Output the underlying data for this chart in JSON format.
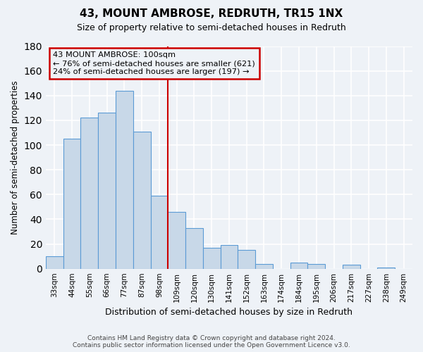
{
  "title": "43, MOUNT AMBROSE, REDRUTH, TR15 1NX",
  "subtitle": "Size of property relative to semi-detached houses in Redruth",
  "xlabel": "Distribution of semi-detached houses by size in Redruth",
  "ylabel": "Number of semi-detached properties",
  "bar_labels": [
    "33sqm",
    "44sqm",
    "55sqm",
    "66sqm",
    "77sqm",
    "87sqm",
    "98sqm",
    "109sqm",
    "120sqm",
    "130sqm",
    "141sqm",
    "152sqm",
    "163sqm",
    "174sqm",
    "184sqm",
    "195sqm",
    "206sqm",
    "217sqm",
    "227sqm",
    "238sqm",
    "249sqm"
  ],
  "bar_values": [
    10,
    105,
    122,
    126,
    144,
    111,
    59,
    46,
    33,
    17,
    19,
    15,
    4,
    0,
    5,
    4,
    0,
    3,
    0,
    1,
    0
  ],
  "bar_color": "#c8d8e8",
  "bar_edge_color": "#5b9bd5",
  "vline_pos": 6.5,
  "vline_color": "#cc0000",
  "annotation_title": "43 MOUNT AMBROSE: 100sqm",
  "annotation_line1": "← 76% of semi-detached houses are smaller (621)",
  "annotation_line2": "24% of semi-detached houses are larger (197) →",
  "annotation_box_color": "#cc0000",
  "ylim": [
    0,
    180
  ],
  "yticks": [
    0,
    20,
    40,
    60,
    80,
    100,
    120,
    140,
    160,
    180
  ],
  "footer_line1": "Contains HM Land Registry data © Crown copyright and database right 2024.",
  "footer_line2": "Contains public sector information licensed under the Open Government Licence v3.0.",
  "bg_color": "#eef2f7",
  "grid_color": "#ffffff"
}
